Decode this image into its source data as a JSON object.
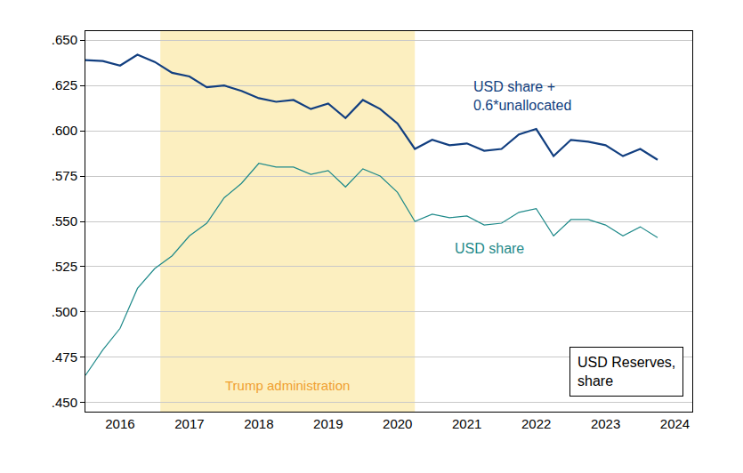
{
  "chart_data": {
    "type": "line",
    "title": "USD Reserves,\nshare",
    "x": [
      2016,
      2016.25,
      2016.5,
      2016.75,
      2017,
      2017.25,
      2017.5,
      2017.75,
      2018,
      2018.25,
      2018.5,
      2018.75,
      2019,
      2019.25,
      2019.5,
      2019.75,
      2020,
      2020.25,
      2020.5,
      2020.75,
      2021,
      2021.25,
      2021.5,
      2021.75,
      2022,
      2022.25,
      2022.5,
      2022.75,
      2023,
      2023.25,
      2023.5,
      2023.75,
      2024,
      2024.25
    ],
    "series": [
      {
        "name": "USD share +\n0.6*unallocated",
        "color": "#123f80",
        "values": [
          0.639,
          0.6385,
          0.636,
          0.642,
          0.638,
          0.632,
          0.63,
          0.624,
          0.625,
          0.622,
          0.618,
          0.616,
          0.617,
          0.612,
          0.615,
          0.607,
          0.617,
          0.612,
          0.604,
          0.59,
          0.595,
          0.592,
          0.593,
          0.589,
          0.59,
          0.598,
          0.601,
          0.586,
          0.595,
          0.594,
          0.592,
          0.586,
          0.59,
          0.584
        ]
      },
      {
        "name": "USD share",
        "color": "#1f8a8a",
        "values": [
          0.465,
          0.479,
          0.491,
          0.513,
          0.524,
          0.531,
          0.542,
          0.549,
          0.563,
          0.571,
          0.582,
          0.58,
          0.58,
          0.576,
          0.578,
          0.569,
          0.579,
          0.575,
          0.566,
          0.55,
          0.554,
          0.552,
          0.553,
          0.548,
          0.549,
          0.555,
          0.557,
          0.542,
          0.551,
          0.551,
          0.548,
          0.542,
          0.547,
          0.541
        ]
      }
    ],
    "xlim": [
      2016,
      2024.75
    ],
    "xticks": [
      {
        "value": 2016.5,
        "label": "2016"
      },
      {
        "value": 2017.5,
        "label": "2017"
      },
      {
        "value": 2018.5,
        "label": "2018"
      },
      {
        "value": 2019.5,
        "label": "2019"
      },
      {
        "value": 2020.5,
        "label": "2020"
      },
      {
        "value": 2021.5,
        "label": "2021"
      },
      {
        "value": 2022.5,
        "label": "2022"
      },
      {
        "value": 2023.5,
        "label": "2023"
      },
      {
        "value": 2024.5,
        "label": "2024"
      }
    ],
    "ylim": [
      0.445,
      0.655
    ],
    "yticks": [
      {
        "value": 0.45,
        "label": ".450"
      },
      {
        "value": 0.475,
        "label": ".475"
      },
      {
        "value": 0.5,
        "label": ".500"
      },
      {
        "value": 0.525,
        "label": ".525"
      },
      {
        "value": 0.55,
        "label": ".550"
      },
      {
        "value": 0.575,
        "label": ".575"
      },
      {
        "value": 0.6,
        "label": ".600"
      },
      {
        "value": 0.625,
        "label": ".625"
      },
      {
        "value": 0.65,
        "label": ".650"
      }
    ],
    "grid": true,
    "annotations": [
      {
        "text": "Trump administration",
        "x0": 2017.08,
        "x1": 2020.75,
        "color": "#fcefc0"
      }
    ]
  }
}
